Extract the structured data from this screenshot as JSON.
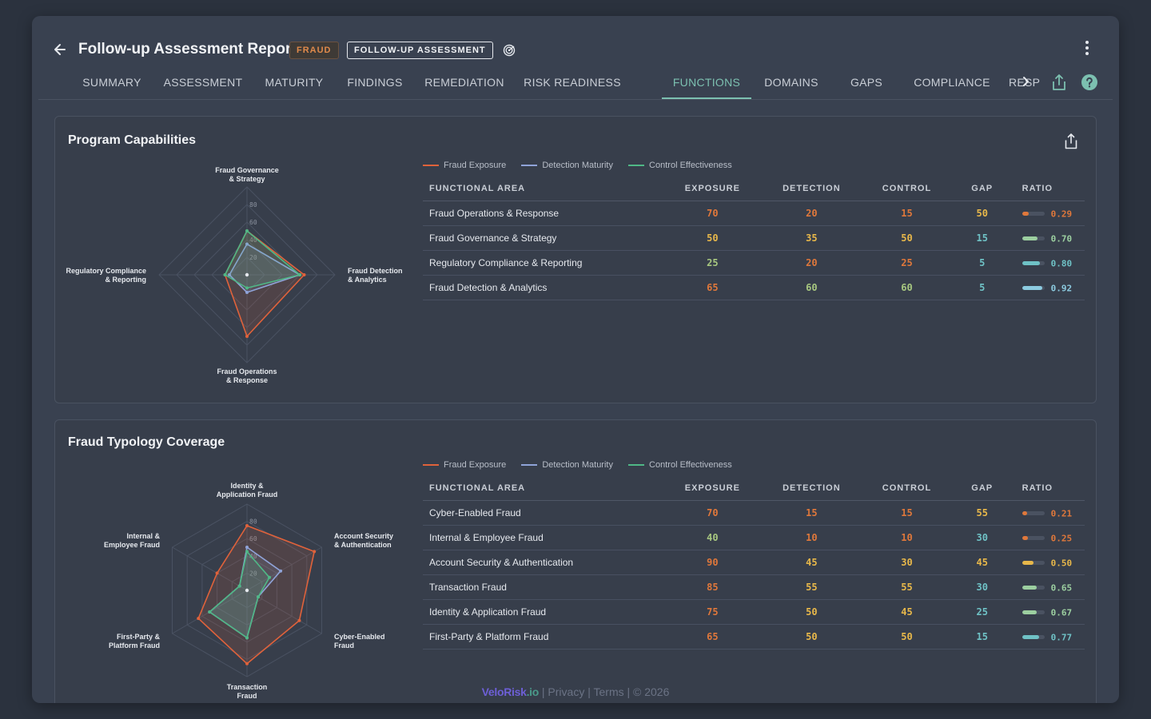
{
  "header": {
    "title": "Follow-up Assessment Report",
    "badge_fraud": "FRAUD",
    "badge_follow": "FOLLOW-UP ASSESSMENT"
  },
  "tabs": [
    "SUMMARY",
    "ASSESSMENT",
    "MATURITY",
    "FINDINGS",
    "REMEDIATION",
    "RISK READINESS",
    "FUNCTIONS",
    "DOMAINS",
    "GAPS",
    "COMPLIANCE",
    "RESP"
  ],
  "active_tab": "FUNCTIONS",
  "colors": {
    "exposure": "#e0623b",
    "detection": "#8fa3d8",
    "control": "#4fb886",
    "accent": "#7cc0b0"
  },
  "legend": [
    "Fraud Exposure",
    "Detection Maturity",
    "Control Effectiveness"
  ],
  "columns": [
    "FUNCTIONAL AREA",
    "EXPOSURE",
    "DETECTION",
    "CONTROL",
    "GAP",
    "RATIO"
  ],
  "panel1": {
    "title": "Program Capabilities",
    "radar_labels": [
      [
        "Fraud Governance",
        "& Strategy"
      ],
      [
        "Fraud Detection",
        "& Analytics"
      ],
      [
        "Fraud Operations",
        "& Response"
      ],
      [
        "Regulatory Compliance",
        "& Reporting"
      ]
    ],
    "ticks": [
      "20",
      "40",
      "60",
      "80"
    ],
    "rows": [
      {
        "area": "Fraud Operations & Response",
        "exposure": "70",
        "detection": "20",
        "control": "15",
        "gap": "50",
        "ratio": "0.29"
      },
      {
        "area": "Fraud Governance & Strategy",
        "exposure": "50",
        "detection": "35",
        "control": "50",
        "gap": "15",
        "ratio": "0.70"
      },
      {
        "area": "Regulatory Compliance & Reporting",
        "exposure": "25",
        "detection": "20",
        "control": "25",
        "gap": "5",
        "ratio": "0.80"
      },
      {
        "area": "Fraud Detection & Analytics",
        "exposure": "65",
        "detection": "60",
        "control": "60",
        "gap": "5",
        "ratio": "0.92"
      }
    ]
  },
  "panel2": {
    "title": "Fraud Typology Coverage",
    "radar_labels": [
      [
        "Identity &",
        "Application Fraud"
      ],
      [
        "Account Security",
        "& Authentication"
      ],
      [
        "Cyber-Enabled",
        "Fraud"
      ],
      [
        "Transaction",
        "Fraud"
      ],
      [
        "First-Party &",
        "Platform Fraud"
      ],
      [
        "Internal &",
        "Employee Fraud"
      ]
    ],
    "ticks": [
      "20",
      "40",
      "60",
      "80"
    ],
    "rows": [
      {
        "area": "Cyber-Enabled Fraud",
        "exposure": "70",
        "detection": "15",
        "control": "15",
        "gap": "55",
        "ratio": "0.21"
      },
      {
        "area": "Internal & Employee Fraud",
        "exposure": "40",
        "detection": "10",
        "control": "10",
        "gap": "30",
        "ratio": "0.25"
      },
      {
        "area": "Account Security & Authentication",
        "exposure": "90",
        "detection": "45",
        "control": "30",
        "gap": "45",
        "ratio": "0.50"
      },
      {
        "area": "Transaction Fraud",
        "exposure": "85",
        "detection": "55",
        "control": "55",
        "gap": "30",
        "ratio": "0.65"
      },
      {
        "area": "Identity & Application Fraud",
        "exposure": "75",
        "detection": "50",
        "control": "45",
        "gap": "25",
        "ratio": "0.67"
      },
      {
        "area": "First-Party & Platform Fraud",
        "exposure": "65",
        "detection": "50",
        "control": "50",
        "gap": "15",
        "ratio": "0.77"
      }
    ]
  },
  "chart_data": [
    {
      "type": "radar",
      "title": "Program Capabilities",
      "categories": [
        "Fraud Governance & Strategy",
        "Fraud Detection & Analytics",
        "Fraud Operations & Response",
        "Regulatory Compliance & Reporting"
      ],
      "rlim": [
        0,
        100
      ],
      "series": [
        {
          "name": "Fraud Exposure",
          "values": [
            50,
            65,
            70,
            25
          ]
        },
        {
          "name": "Detection Maturity",
          "values": [
            35,
            60,
            20,
            20
          ]
        },
        {
          "name": "Control Effectiveness",
          "values": [
            50,
            60,
            15,
            25
          ]
        }
      ]
    },
    {
      "type": "radar",
      "title": "Fraud Typology Coverage",
      "categories": [
        "Identity & Application Fraud",
        "Account Security & Authentication",
        "Cyber-Enabled Fraud",
        "Transaction Fraud",
        "First-Party & Platform Fraud",
        "Internal & Employee Fraud"
      ],
      "rlim": [
        0,
        100
      ],
      "series": [
        {
          "name": "Fraud Exposure",
          "values": [
            75,
            90,
            70,
            85,
            65,
            40
          ]
        },
        {
          "name": "Detection Maturity",
          "values": [
            50,
            45,
            15,
            55,
            50,
            10
          ]
        },
        {
          "name": "Control Effectiveness",
          "values": [
            45,
            30,
            15,
            55,
            50,
            10
          ]
        }
      ]
    }
  ],
  "footer": {
    "brand": "VeloRisk",
    "brand_tld": ".io",
    "links": "| Privacy | Terms | © 2026"
  }
}
